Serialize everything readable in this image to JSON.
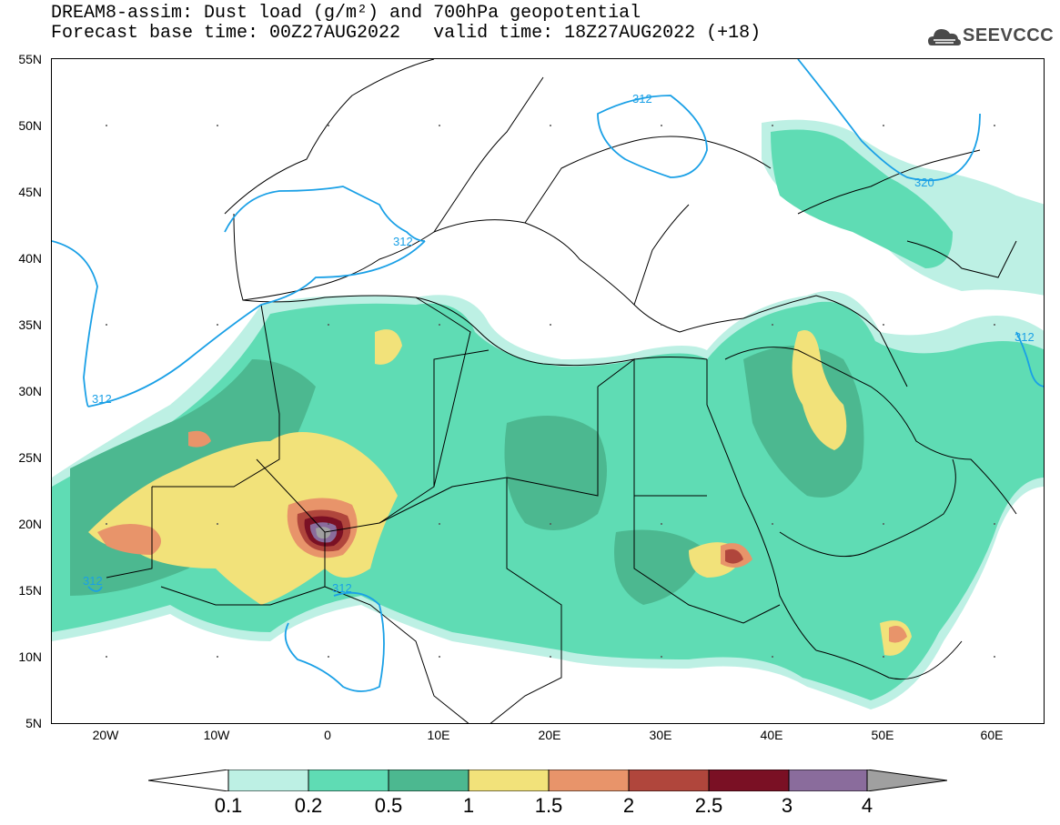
{
  "header": {
    "title_line1": "DREAM8-assim: Dust load (g/m²) and 700hPa geopotential",
    "title_line2_base": "Forecast base time: 00Z27AUG2022",
    "title_line2_valid": "valid time: 18Z27AUG2022 (+18)",
    "logo_text": "SEEVCCC"
  },
  "map": {
    "lat_labels": [
      "55N",
      "50N",
      "45N",
      "40N",
      "35N",
      "30N",
      "25N",
      "20N",
      "15N",
      "10N",
      "5N"
    ],
    "lon_labels": [
      "20W",
      "10W",
      "0",
      "10E",
      "20E",
      "30E",
      "40E",
      "50E",
      "60E"
    ],
    "contour_labels": [
      "312",
      "312",
      "312",
      "312",
      "312",
      "312",
      "320"
    ],
    "colors": {
      "level_0_1": "#bdf0e4",
      "level_0_2": "#5fdcb4",
      "level_0_5": "#4cb890",
      "level_1": "#f2e27a",
      "level_1_5": "#e8946a",
      "level_2": "#b0463c",
      "level_2_5": "#7a1024",
      "level_3": "#8a6c9c",
      "level_4": "#a0a0a0",
      "contour": "#1aa0e6",
      "border": "#000000"
    }
  },
  "colorbar": {
    "labels": [
      "0.1",
      "0.2",
      "0.5",
      "1",
      "1.5",
      "2",
      "2.5",
      "3",
      "4"
    ]
  }
}
